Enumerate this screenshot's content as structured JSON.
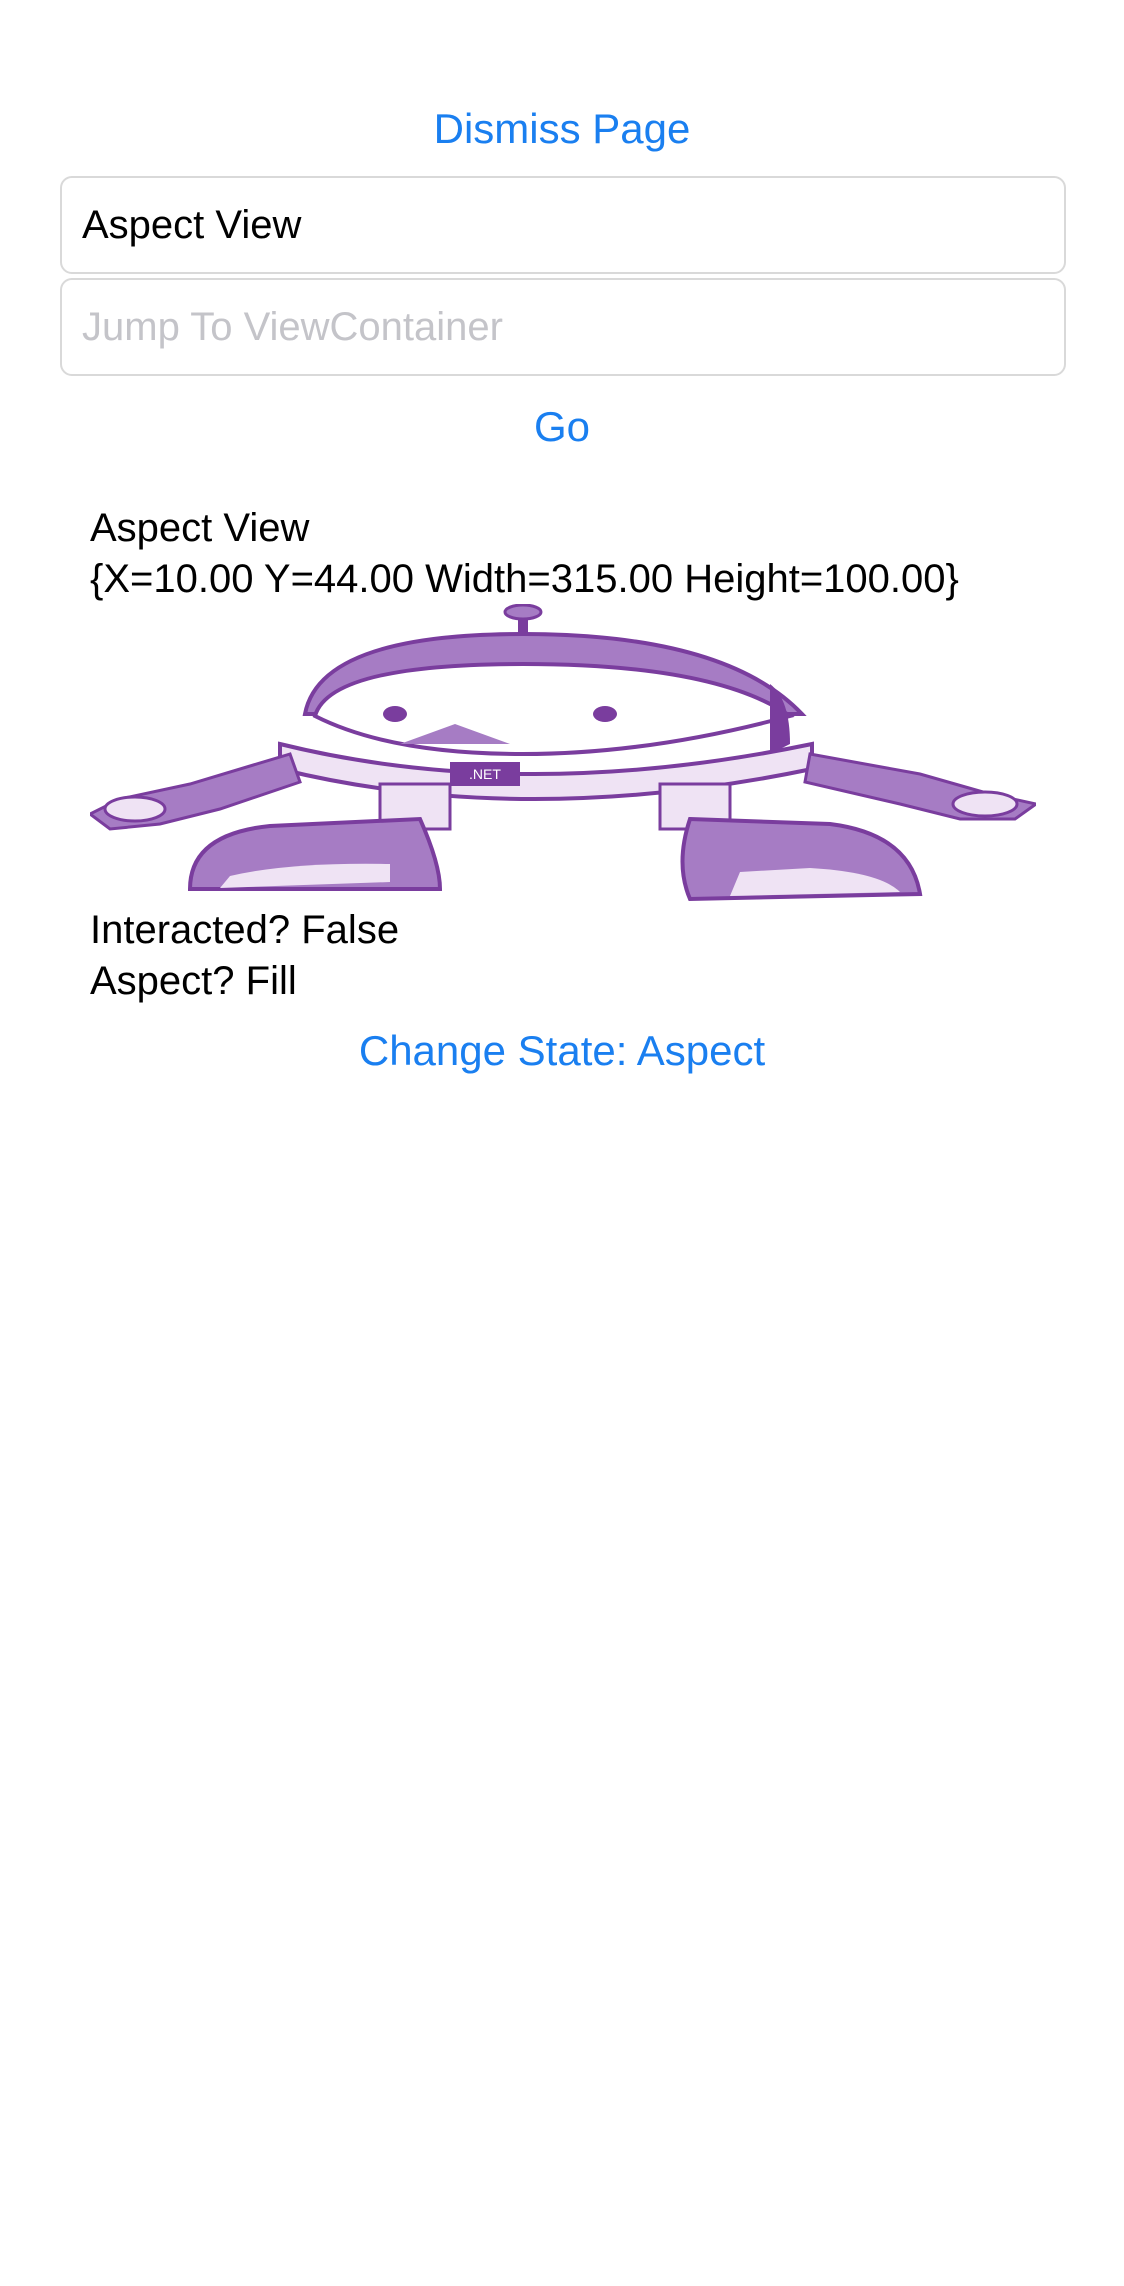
{
  "header": {
    "dismiss_label": "Dismiss Page"
  },
  "form": {
    "title_value": "Aspect View",
    "jump_placeholder": "Jump To ViewContainer",
    "go_label": "Go"
  },
  "content": {
    "view_name": "Aspect View",
    "frame_text": "{X=10.00 Y=44.00 Width=315.00 Height=100.00}",
    "image_badge": ".NET",
    "interacted_text": "Interacted? False",
    "aspect_text": "Aspect? Fill",
    "change_state_label": "Change State: Aspect"
  },
  "colors": {
    "accent": "#1a7ff0",
    "robot_purple": "#a67cc4",
    "robot_dark": "#7a3d9e",
    "robot_light": "#efe3f4"
  }
}
